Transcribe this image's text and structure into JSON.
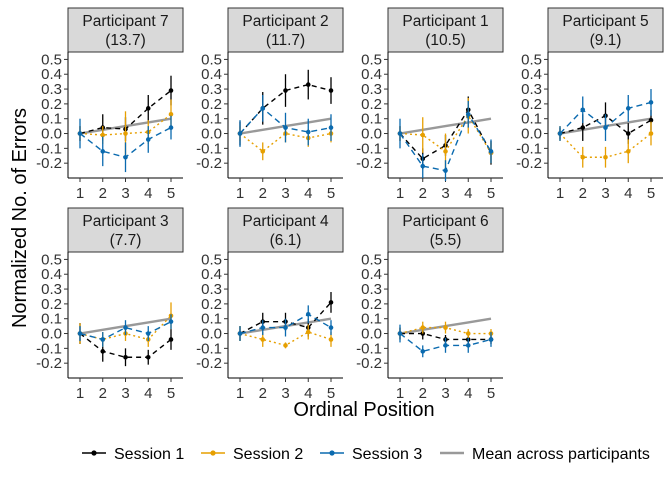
{
  "chart_data": {
    "type": "line",
    "xlabel": "Ordinal Position",
    "ylabel": "Normalized No. of Errors",
    "x": [
      1,
      2,
      3,
      4,
      5
    ],
    "ylim": [
      -0.3,
      0.55
    ],
    "yticks": [
      "0.5",
      "0.4",
      "0.3",
      "0.2",
      "0.1",
      "0.0",
      "-0.1",
      "-0.2"
    ],
    "grid": false,
    "legend": {
      "position": "bottom",
      "entries": [
        "Session 1",
        "Session 2",
        "Session 3",
        "Mean across participants"
      ]
    },
    "colors": {
      "Session 1": "#000000",
      "Session 2": "#E69F00",
      "Session 3": "#0A6AAF",
      "Mean across participants": "#999999"
    },
    "panels": [
      {
        "title": "Participant 7",
        "subtitle": "(13.7)",
        "series": [
          {
            "name": "Session 1",
            "values": [
              0.0,
              0.04,
              0.03,
              0.17,
              0.29
            ],
            "errors": [
              0.05,
              0.09,
              0.08,
              0.09,
              0.1
            ]
          },
          {
            "name": "Session 2",
            "values": [
              0.0,
              -0.01,
              0.0,
              0.01,
              0.13
            ],
            "errors": [
              0.05,
              0.06,
              0.15,
              0.08,
              0.1
            ]
          },
          {
            "name": "Session 3",
            "values": [
              0.0,
              -0.12,
              -0.16,
              -0.04,
              0.04
            ],
            "errors": [
              0.1,
              0.1,
              0.1,
              0.09,
              0.08
            ]
          }
        ],
        "mean": [
          0.0,
          0.025,
          0.05,
          0.075,
          0.1
        ]
      },
      {
        "title": "Participant 2",
        "subtitle": "(11.7)",
        "series": [
          {
            "name": "Session 1",
            "values": [
              0.0,
              0.17,
              0.29,
              0.33,
              0.29
            ],
            "errors": [
              0.08,
              0.11,
              0.11,
              0.1,
              0.09
            ]
          },
          {
            "name": "Session 2",
            "values": [
              0.0,
              -0.12,
              0.0,
              -0.03,
              0.0
            ],
            "errors": [
              0.05,
              0.06,
              0.06,
              0.06,
              0.06
            ]
          },
          {
            "name": "Session 3",
            "values": [
              0.0,
              0.17,
              0.04,
              0.01,
              0.04
            ],
            "errors": [
              0.09,
              0.09,
              0.1,
              0.09,
              0.09
            ]
          }
        ],
        "mean": [
          0.0,
          0.025,
          0.05,
          0.075,
          0.1
        ]
      },
      {
        "title": "Participant 1",
        "subtitle": "(10.5)",
        "series": [
          {
            "name": "Session 1",
            "values": [
              0.0,
              -0.17,
              -0.08,
              0.16,
              -0.13
            ],
            "errors": [
              0.05,
              0.07,
              0.07,
              0.09,
              0.08
            ]
          },
          {
            "name": "Session 2",
            "values": [
              0.0,
              -0.01,
              -0.12,
              0.12,
              -0.13
            ],
            "errors": [
              0.05,
              0.12,
              0.12,
              0.12,
              0.07
            ]
          },
          {
            "name": "Session 3",
            "values": [
              0.0,
              -0.22,
              -0.25,
              0.13,
              -0.12
            ],
            "errors": [
              0.1,
              0.08,
              0.07,
              0.09,
              0.08
            ]
          }
        ],
        "mean": [
          0.0,
          0.025,
          0.05,
          0.075,
          0.1
        ]
      },
      {
        "title": "Participant 5",
        "subtitle": "(9.1)",
        "series": [
          {
            "name": "Session 1",
            "values": [
              0.0,
              0.04,
              0.12,
              0.0,
              0.09
            ],
            "errors": [
              0.04,
              0.09,
              0.09,
              0.07,
              0.07
            ]
          },
          {
            "name": "Session 2",
            "values": [
              0.0,
              -0.16,
              -0.16,
              -0.12,
              0.0
            ],
            "errors": [
              0.05,
              0.07,
              0.07,
              0.08,
              0.08
            ]
          },
          {
            "name": "Session 3",
            "values": [
              0.0,
              0.16,
              0.04,
              0.17,
              0.21
            ],
            "errors": [
              0.05,
              0.09,
              0.09,
              0.09,
              0.09
            ]
          }
        ],
        "mean": [
          0.0,
          0.025,
          0.05,
          0.075,
          0.1
        ]
      },
      {
        "title": "Participant 3",
        "subtitle": "(7.7)",
        "series": [
          {
            "name": "Session 1",
            "values": [
              0.0,
              -0.12,
              -0.16,
              -0.16,
              -0.04
            ],
            "errors": [
              0.07,
              0.07,
              0.06,
              0.05,
              0.07
            ]
          },
          {
            "name": "Session 2",
            "values": [
              0.0,
              -0.04,
              0.0,
              -0.04,
              0.12
            ],
            "errors": [
              0.07,
              0.05,
              0.05,
              0.05,
              0.09
            ]
          },
          {
            "name": "Session 3",
            "values": [
              0.0,
              -0.04,
              0.04,
              0.0,
              0.08
            ],
            "errors": [
              0.05,
              0.05,
              0.05,
              0.05,
              0.05
            ]
          }
        ],
        "mean": [
          0.0,
          0.025,
          0.05,
          0.075,
          0.1
        ]
      },
      {
        "title": "Participant 4",
        "subtitle": "(6.1)",
        "series": [
          {
            "name": "Session 1",
            "values": [
              0.0,
              0.08,
              0.08,
              0.04,
              0.21
            ],
            "errors": [
              0.05,
              0.06,
              0.06,
              0.06,
              0.07
            ]
          },
          {
            "name": "Session 2",
            "values": [
              0.0,
              -0.04,
              -0.08,
              0.01,
              -0.04
            ],
            "errors": [
              0.05,
              0.05,
              0.02,
              0.05,
              0.05
            ]
          },
          {
            "name": "Session 3",
            "values": [
              0.0,
              0.04,
              0.04,
              0.13,
              0.04
            ],
            "errors": [
              0.05,
              0.05,
              0.06,
              0.06,
              0.05
            ]
          }
        ],
        "mean": [
          0.0,
          0.025,
          0.05,
          0.075,
          0.1
        ]
      },
      {
        "title": "Participant 6",
        "subtitle": "(5.5)",
        "series": [
          {
            "name": "Session 1",
            "values": [
              0.0,
              0.0,
              -0.04,
              -0.04,
              -0.04
            ],
            "errors": [
              0.04,
              0.04,
              0.03,
              0.03,
              0.03
            ]
          },
          {
            "name": "Session 2",
            "values": [
              0.0,
              0.04,
              0.04,
              0.0,
              0.0
            ],
            "errors": [
              0.04,
              0.04,
              0.04,
              0.03,
              0.03
            ]
          },
          {
            "name": "Session 3",
            "values": [
              0.0,
              -0.12,
              -0.08,
              -0.08,
              -0.04
            ],
            "errors": [
              0.06,
              0.04,
              0.05,
              0.05,
              0.05
            ]
          }
        ],
        "mean": [
          0.0,
          0.025,
          0.05,
          0.075,
          0.1
        ]
      }
    ]
  }
}
